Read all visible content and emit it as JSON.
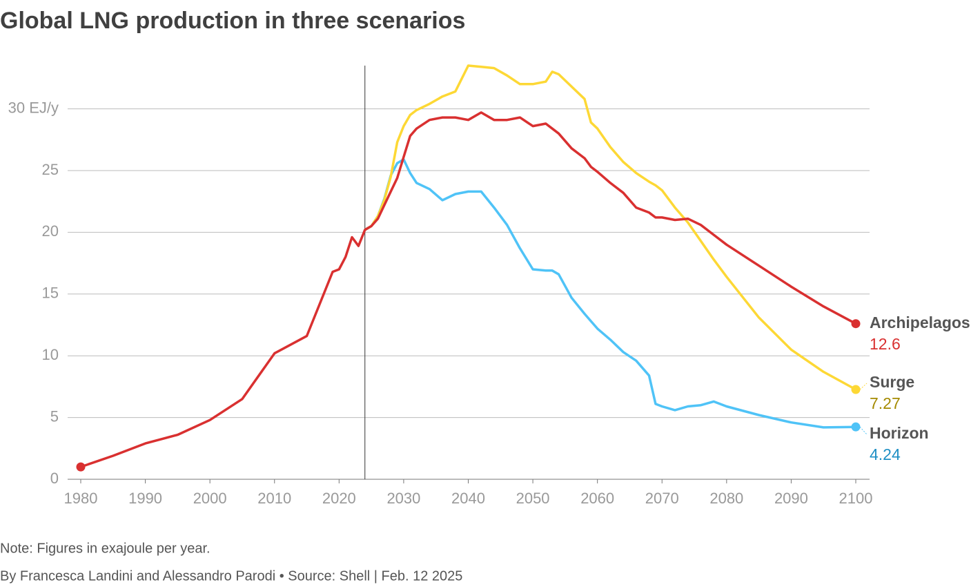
{
  "chart_data": {
    "type": "line",
    "title": "Global LNG production in three scenarios",
    "note": "Note: Figures in exajoule per year.",
    "source": "By Francesca Landini and Alessandro Parodi • Source: Shell | Feb. 12 2025",
    "x": [
      1980,
      1985,
      1990,
      1995,
      2000,
      2005,
      2010,
      2015,
      2019,
      2020,
      2021,
      2022,
      2023,
      2024,
      2025,
      2026,
      2027,
      2028,
      2029,
      2030,
      2031,
      2032,
      2034,
      2036,
      2038,
      2040,
      2042,
      2044,
      2046,
      2048,
      2050,
      2052,
      2053,
      2054,
      2056,
      2058,
      2059,
      2060,
      2062,
      2064,
      2066,
      2068,
      2069,
      2070,
      2072,
      2074,
      2076,
      2078,
      2080,
      2085,
      2090,
      2095,
      2100
    ],
    "series": [
      {
        "name": "Archipelagos",
        "color": "#d93030",
        "label_color": "#d93030",
        "end_label": "12.6",
        "start_dot": true,
        "values": [
          1.0,
          1.9,
          2.9,
          3.6,
          4.8,
          6.5,
          10.2,
          11.6,
          16.8,
          17.0,
          18.0,
          19.6,
          18.9,
          20.2,
          20.5,
          21.1,
          22.2,
          23.3,
          24.4,
          26.1,
          27.8,
          28.4,
          29.1,
          29.3,
          29.3,
          29.1,
          29.7,
          29.1,
          29.1,
          29.3,
          28.6,
          28.8,
          28.4,
          28.0,
          26.8,
          26.0,
          25.3,
          24.9,
          24.0,
          23.2,
          22.0,
          21.6,
          21.2,
          21.2,
          21.0,
          21.1,
          20.6,
          19.8,
          19.0,
          17.3,
          15.6,
          14.0,
          12.6
        ]
      },
      {
        "name": "Surge",
        "color": "#fdd835",
        "label_color": "#a48a00",
        "end_label": "7.27",
        "values": [
          null,
          null,
          null,
          null,
          null,
          null,
          null,
          null,
          null,
          null,
          null,
          null,
          null,
          20.2,
          20.5,
          21.3,
          22.6,
          24.5,
          27.3,
          28.6,
          29.5,
          29.9,
          30.4,
          31.0,
          31.4,
          33.5,
          33.4,
          33.3,
          32.7,
          32.0,
          32.0,
          32.2,
          33.0,
          32.8,
          31.8,
          30.8,
          28.9,
          28.4,
          26.9,
          25.7,
          24.8,
          24.1,
          23.8,
          23.4,
          22.0,
          20.8,
          19.3,
          17.8,
          16.4,
          13.1,
          10.5,
          8.7,
          7.27
        ]
      },
      {
        "name": "Horizon",
        "color": "#4fc3f7",
        "label_color": "#1e8fc4",
        "end_label": "4.24",
        "values": [
          null,
          null,
          null,
          null,
          null,
          null,
          null,
          null,
          null,
          null,
          null,
          null,
          null,
          20.2,
          20.5,
          21.3,
          22.7,
          24.6,
          25.6,
          25.9,
          24.8,
          24.0,
          23.5,
          22.6,
          23.1,
          23.3,
          23.3,
          22.0,
          20.6,
          18.7,
          17.0,
          16.9,
          16.9,
          16.6,
          14.7,
          13.4,
          12.8,
          12.2,
          11.3,
          10.3,
          9.6,
          8.4,
          6.1,
          5.9,
          5.6,
          5.9,
          6.0,
          6.3,
          5.9,
          5.2,
          4.6,
          4.2,
          4.24
        ]
      }
    ],
    "xlim": [
      1980,
      2100
    ],
    "xticks": [
      1980,
      1990,
      2000,
      2010,
      2020,
      2030,
      2040,
      2050,
      2060,
      2070,
      2080,
      2090,
      2100
    ],
    "ylim": [
      0,
      33.5
    ],
    "yticks": [
      0,
      5,
      10,
      15,
      20,
      25,
      {
        "value": 30,
        "label": "30 EJ/y"
      }
    ],
    "vline": 2024,
    "grid": true
  }
}
